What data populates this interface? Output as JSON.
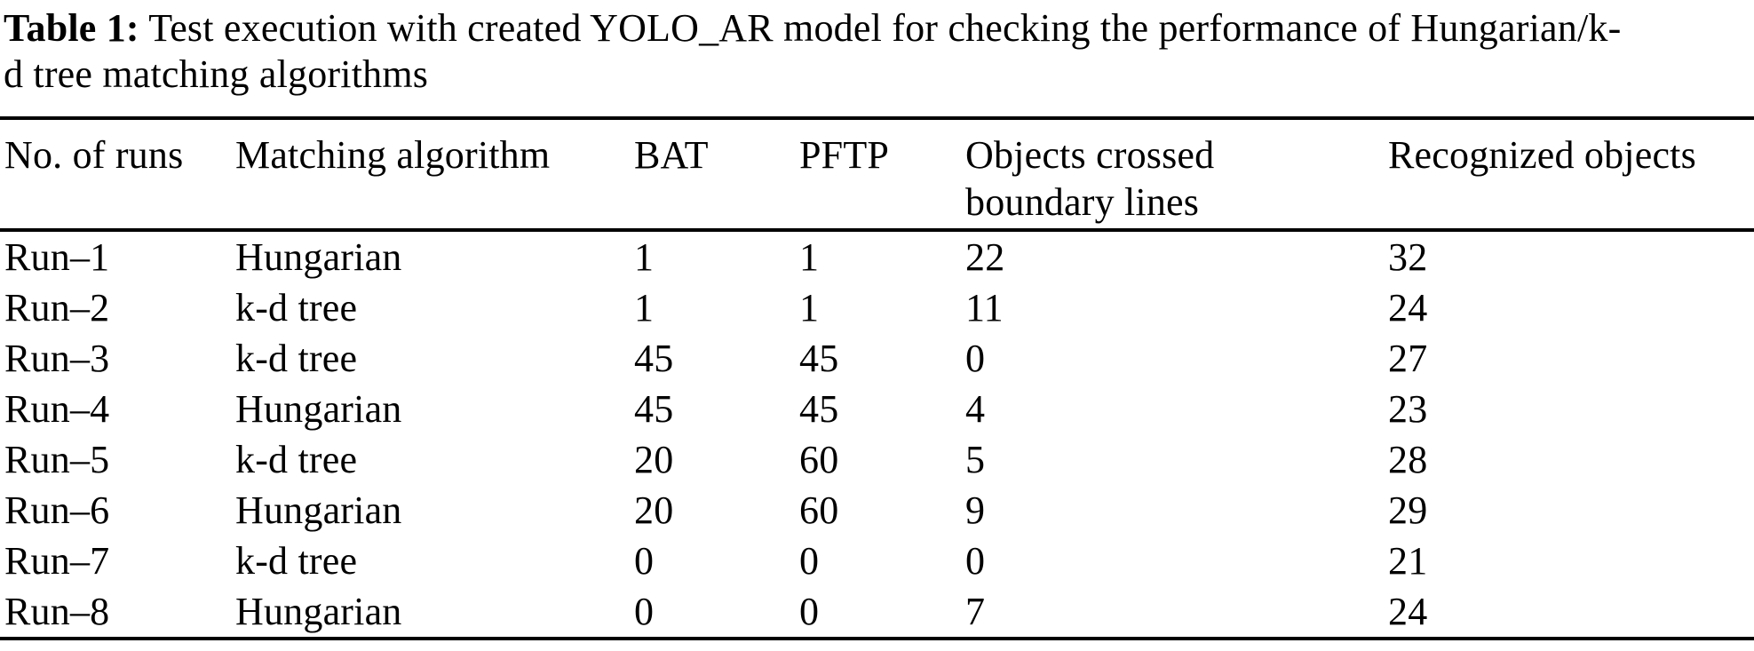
{
  "caption": {
    "label": "Table 1:",
    "line1_rest": " Test execution with created YOLO_AR model for checking the performance of Hungarian/k-",
    "line2": "d tree matching algorithms"
  },
  "table": {
    "headers": {
      "runs": "No. of runs",
      "algorithm": "Matching algorithm",
      "bat": "BAT",
      "pftp": "PFTP",
      "crossed": "Objects crossed boundary lines",
      "recognized": "Recognized objects"
    },
    "rows": [
      [
        "Run–1",
        "Hungarian",
        "1",
        "1",
        "22",
        "32"
      ],
      [
        "Run–2",
        "k-d tree",
        "1",
        "1",
        "11",
        "24"
      ],
      [
        "Run–3",
        "k-d tree",
        "45",
        "45",
        "0",
        "27"
      ],
      [
        "Run–4",
        "Hungarian",
        "45",
        "45",
        "4",
        "23"
      ],
      [
        "Run–5",
        "k-d tree",
        "20",
        "60",
        "5",
        "28"
      ],
      [
        "Run–6",
        "Hungarian",
        "20",
        "60",
        "9",
        "29"
      ],
      [
        "Run–7",
        "k-d tree",
        "0",
        "0",
        "0",
        "21"
      ],
      [
        "Run–8",
        "Hungarian",
        "0",
        "0",
        "7",
        "24"
      ]
    ]
  },
  "colors": {
    "text": "#000000",
    "background": "#ffffff",
    "rule": "#000000"
  }
}
